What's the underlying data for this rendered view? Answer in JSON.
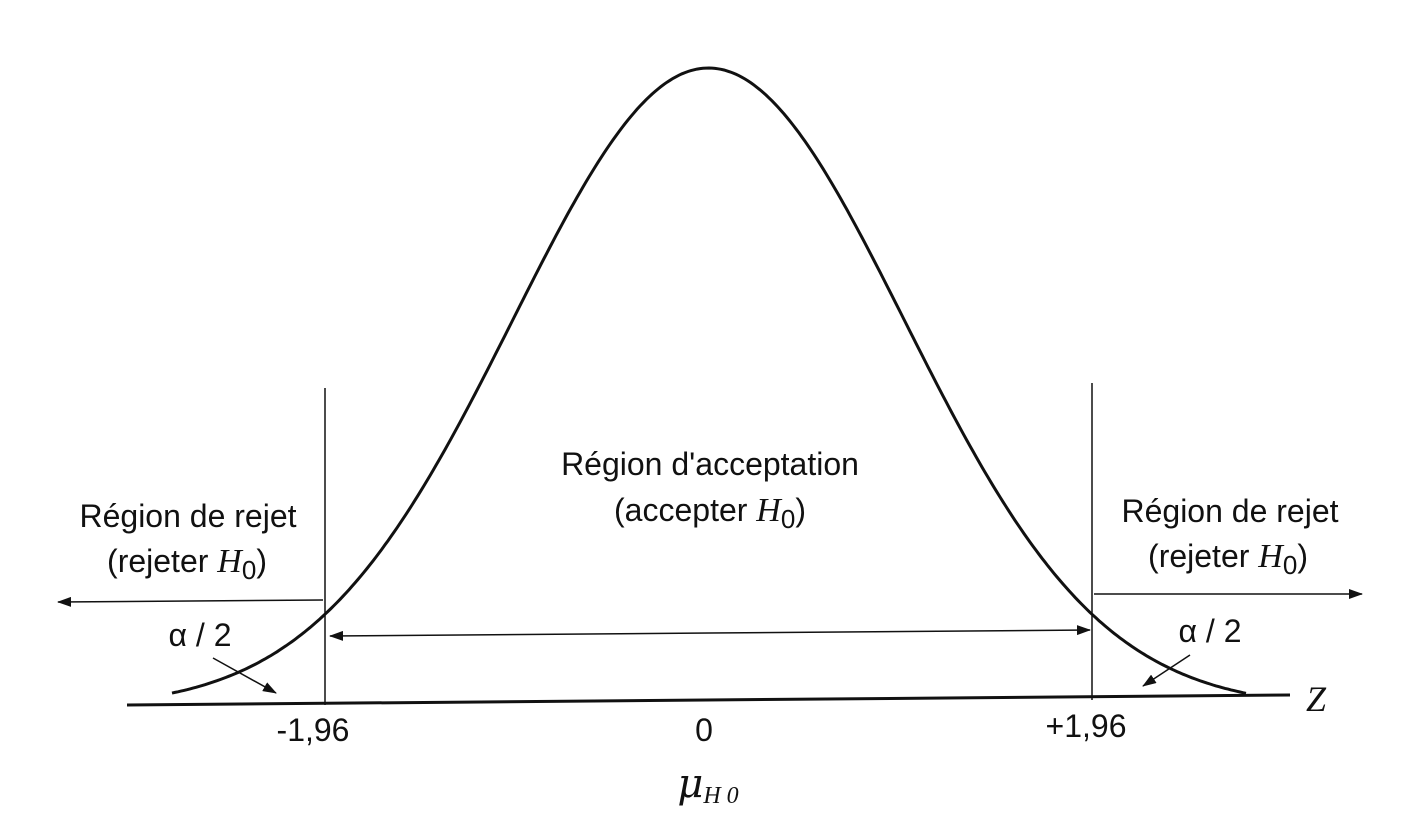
{
  "figure": {
    "acceptance": {
      "title": "Région d'acceptation",
      "subtitle_prefix": "(accepter ",
      "h_symbol": "H",
      "h_subscript": "0",
      "subtitle_suffix": ")"
    },
    "reject_left": {
      "title": "Région de rejet",
      "subtitle_prefix": "(rejeter ",
      "h_symbol": "H",
      "h_subscript": "0",
      "subtitle_suffix": ")"
    },
    "reject_right": {
      "title": "Région de rejet",
      "subtitle_prefix": "(rejeter ",
      "h_symbol": "H",
      "h_subscript": "0",
      "subtitle_suffix": ")"
    },
    "alpha_left": "α / 2",
    "alpha_right": "α / 2",
    "axis_label": "Z",
    "tick_left": "-1,96",
    "tick_center": "0",
    "tick_right": "+1,96",
    "mu_symbol": "μ",
    "mu_subscript": "H 0"
  },
  "chart_data": {
    "type": "line",
    "distribution": "standard normal",
    "x_ticks": [
      -1.96,
      0,
      1.96
    ],
    "tick_labels": [
      "-1,96",
      "0",
      "+1,96"
    ],
    "critical_values": [
      -1.96,
      1.96
    ],
    "xlabel": "Z",
    "grid": false
  }
}
